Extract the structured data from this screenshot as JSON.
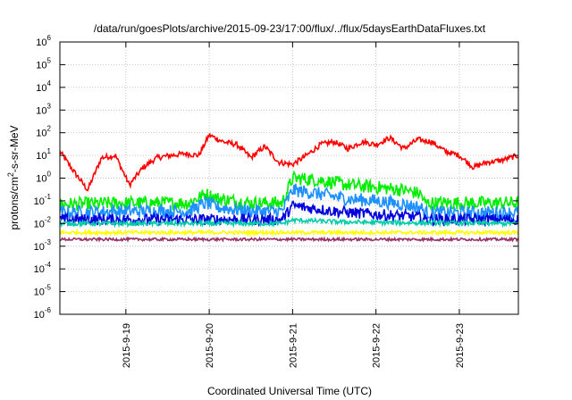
{
  "chart_data": {
    "type": "line",
    "title": "/data/run/goesPlots/archive/2015-09-23/17:00/flux/../flux/5daysEarthDataFluxes.txt",
    "xlabel": "Coordinated Universal Time (UTC)",
    "ylabel": {
      "pre": "protons/cm",
      "sup": "2",
      "post": "-s-sr-MeV"
    },
    "yscale": "log",
    "ylim": [
      1e-06,
      1000000.0
    ],
    "xlim": [
      "2015-09-18 05:00",
      "2015-09-23 17:00"
    ],
    "y_ticks": [
      {
        "base": "10",
        "exp": "-6",
        "value": 1e-06
      },
      {
        "base": "10",
        "exp": "-5",
        "value": 1e-05
      },
      {
        "base": "10",
        "exp": "-4",
        "value": 0.0001
      },
      {
        "base": "10",
        "exp": "-3",
        "value": 0.001
      },
      {
        "base": "10",
        "exp": "-2",
        "value": 0.01
      },
      {
        "base": "10",
        "exp": "-1",
        "value": 0.1
      },
      {
        "base": "10",
        "exp": "0",
        "value": 1
      },
      {
        "base": "10",
        "exp": "1",
        "value": 10
      },
      {
        "base": "10",
        "exp": "2",
        "value": 100
      },
      {
        "base": "10",
        "exp": "3",
        "value": 1000
      },
      {
        "base": "10",
        "exp": "4",
        "value": 10000
      },
      {
        "base": "10",
        "exp": "5",
        "value": 100000
      },
      {
        "base": "10",
        "exp": "6",
        "value": 1000000
      }
    ],
    "x_ticks": [
      {
        "label": "2015-9-19",
        "date": "2015-09-19 00:00"
      },
      {
        "label": "2015-9-20",
        "date": "2015-09-20 00:00"
      },
      {
        "label": "2015-9-21",
        "date": "2015-09-21 00:00"
      },
      {
        "label": "2015-9-22",
        "date": "2015-09-22 00:00"
      },
      {
        "label": "2015-9-23",
        "date": "2015-09-23 00:00"
      }
    ],
    "grid": true,
    "legend": "none",
    "series": [
      {
        "color": "#ff0000",
        "noise": 0.12,
        "x": [
          "2015-09-18 05:00",
          "2015-09-18 09:00",
          "2015-09-18 13:00",
          "2015-09-18 17:00",
          "2015-09-18 21:00",
          "2015-09-19 01:00",
          "2015-09-19 05:00",
          "2015-09-19 09:00",
          "2015-09-19 13:00",
          "2015-09-19 17:00",
          "2015-09-19 21:00",
          "2015-09-20 00:00",
          "2015-09-20 04:00",
          "2015-09-20 08:00",
          "2015-09-20 12:00",
          "2015-09-20 16:00",
          "2015-09-20 20:00",
          "2015-09-21 00:00",
          "2015-09-21 04:00",
          "2015-09-21 08:00",
          "2015-09-21 12:00",
          "2015-09-21 16:00",
          "2015-09-21 20:00",
          "2015-09-22 00:00",
          "2015-09-22 04:00",
          "2015-09-22 08:00",
          "2015-09-22 12:00",
          "2015-09-22 16:00",
          "2015-09-22 20:00",
          "2015-09-23 00:00",
          "2015-09-23 04:00",
          "2015-09-23 08:00",
          "2015-09-23 12:00",
          "2015-09-23 17:00"
        ],
        "y": [
          15,
          2,
          0.3,
          8,
          10,
          0.5,
          3,
          8,
          10,
          12,
          10,
          80,
          40,
          30,
          8,
          25,
          5,
          4,
          10,
          30,
          40,
          20,
          40,
          30,
          60,
          20,
          50,
          40,
          15,
          10,
          3,
          5,
          6,
          10
        ]
      },
      {
        "color": "#00ee00",
        "noise": 0.3,
        "x": [
          "2015-09-18 05:00",
          "2015-09-19 00:00",
          "2015-09-19 18:00",
          "2015-09-19 23:00",
          "2015-09-20 03:00",
          "2015-09-20 12:00",
          "2015-09-20 21:00",
          "2015-09-21 00:00",
          "2015-09-21 08:00",
          "2015-09-21 16:00",
          "2015-09-22 00:00",
          "2015-09-22 08:00",
          "2015-09-22 13:00",
          "2015-09-22 14:00",
          "2015-09-23 00:00",
          "2015-09-23 17:00"
        ],
        "y": [
          0.07,
          0.08,
          0.08,
          0.2,
          0.12,
          0.08,
          0.08,
          1.0,
          0.8,
          0.5,
          0.4,
          0.3,
          0.2,
          0.08,
          0.08,
          0.08
        ]
      },
      {
        "color": "#1e90ff",
        "noise": 0.3,
        "x": [
          "2015-09-18 05:00",
          "2015-09-19 00:00",
          "2015-09-19 18:00",
          "2015-09-19 23:00",
          "2015-09-20 03:00",
          "2015-09-20 12:00",
          "2015-09-20 21:00",
          "2015-09-21 00:00",
          "2015-09-21 08:00",
          "2015-09-21 16:00",
          "2015-09-22 00:00",
          "2015-09-22 08:00",
          "2015-09-22 13:00",
          "2015-09-22 14:00",
          "2015-09-23 00:00",
          "2015-09-23 17:00"
        ],
        "y": [
          0.03,
          0.035,
          0.035,
          0.08,
          0.05,
          0.035,
          0.035,
          0.3,
          0.2,
          0.12,
          0.1,
          0.07,
          0.05,
          0.03,
          0.03,
          0.03
        ]
      },
      {
        "color": "#0000dd",
        "noise": 0.25,
        "x": [
          "2015-09-18 05:00",
          "2015-09-19 00:00",
          "2015-09-20 00:00",
          "2015-09-20 21:00",
          "2015-09-21 00:00",
          "2015-09-21 12:00",
          "2015-09-22 00:00",
          "2015-09-22 12:00",
          "2015-09-22 14:00",
          "2015-09-23 17:00"
        ],
        "y": [
          0.015,
          0.015,
          0.015,
          0.015,
          0.06,
          0.035,
          0.025,
          0.02,
          0.015,
          0.015
        ]
      },
      {
        "color": "#00ccaa",
        "noise": 0.1,
        "x": [
          "2015-09-18 05:00",
          "2015-09-20 21:00",
          "2015-09-21 00:00",
          "2015-09-21 12:00",
          "2015-09-22 00:00",
          "2015-09-23 17:00"
        ],
        "y": [
          0.01,
          0.01,
          0.014,
          0.012,
          0.011,
          0.01
        ]
      },
      {
        "color": "#ffff00",
        "noise": 0.08,
        "x": [
          "2015-09-18 05:00",
          "2015-09-23 17:00"
        ],
        "y": [
          0.004,
          0.004
        ]
      },
      {
        "color": "#993366",
        "noise": 0.06,
        "x": [
          "2015-09-18 05:00",
          "2015-09-23 17:00"
        ],
        "y": [
          0.002,
          0.002
        ]
      }
    ]
  }
}
